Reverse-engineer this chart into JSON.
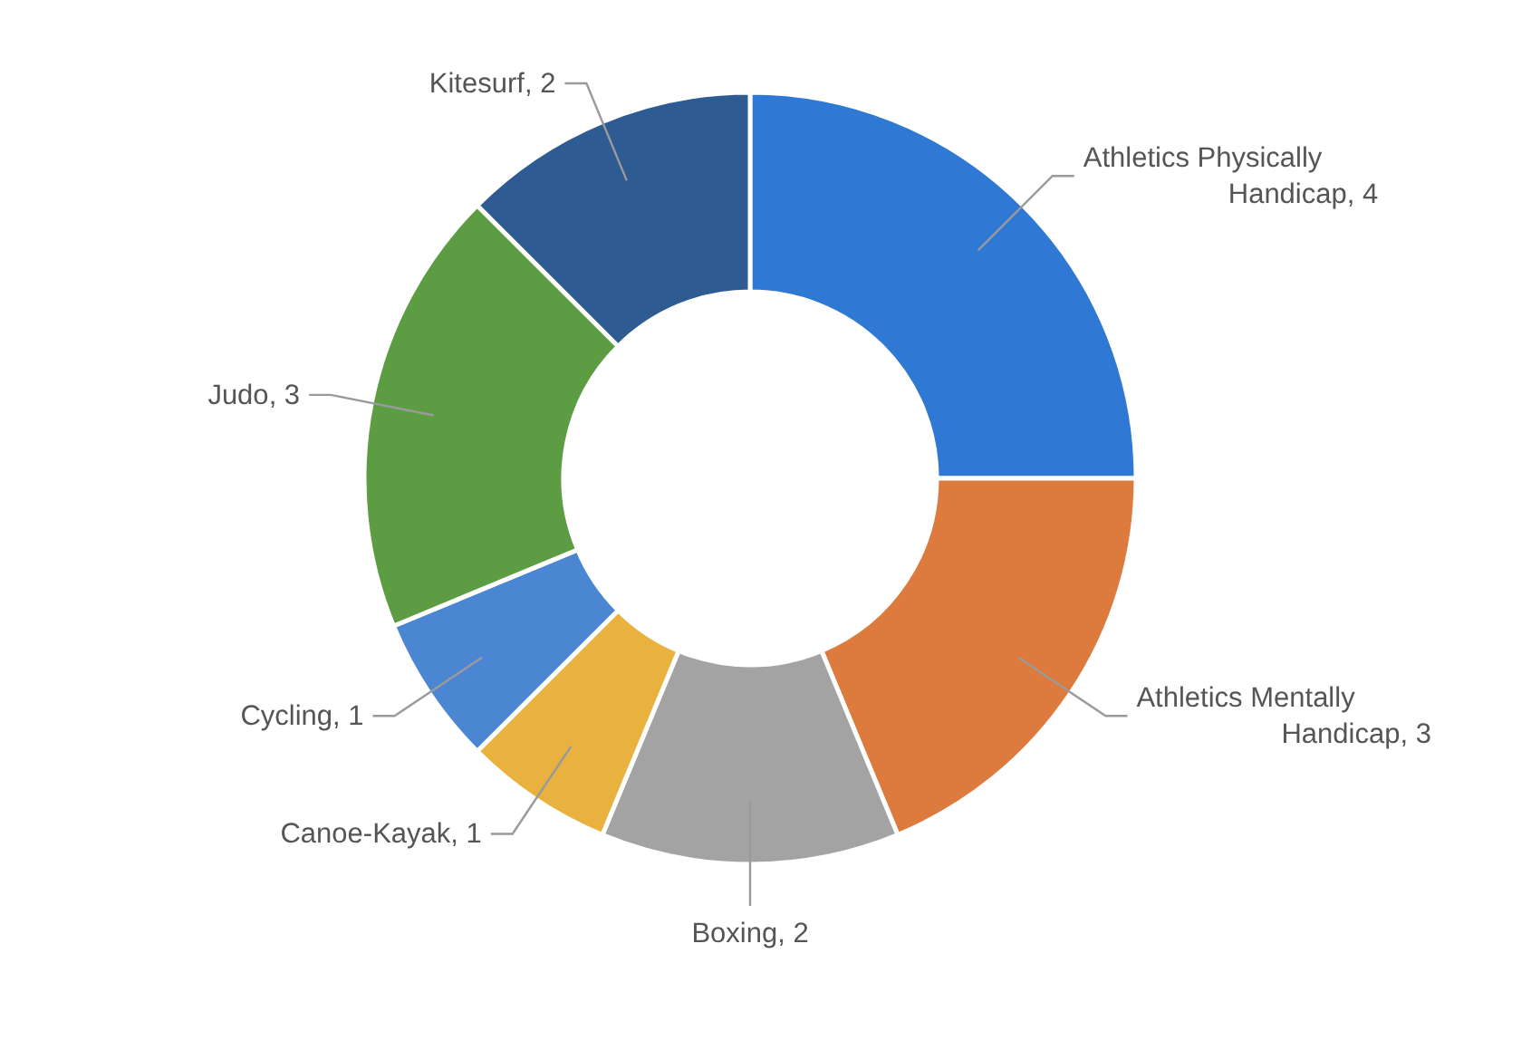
{
  "chart_data": {
    "type": "donut",
    "categories": [
      "Athletics Physically Handicap",
      "Athletics Mentally Handicap",
      "Boxing",
      "Canoe-Kayak",
      "Cycling",
      "Judo",
      "Kitesurf"
    ],
    "values": [
      4,
      3,
      2,
      1,
      1,
      3,
      2
    ],
    "colors": [
      "#2f78d4",
      "#dd7a3e",
      "#a3a3a3",
      "#e9b23f",
      "#4a86d2",
      "#5c9d43",
      "#2f5b93"
    ],
    "value_labels": [
      ", 4",
      ", 3",
      ", 2",
      ", 1",
      ", 1",
      ", 3",
      ", 2"
    ]
  }
}
